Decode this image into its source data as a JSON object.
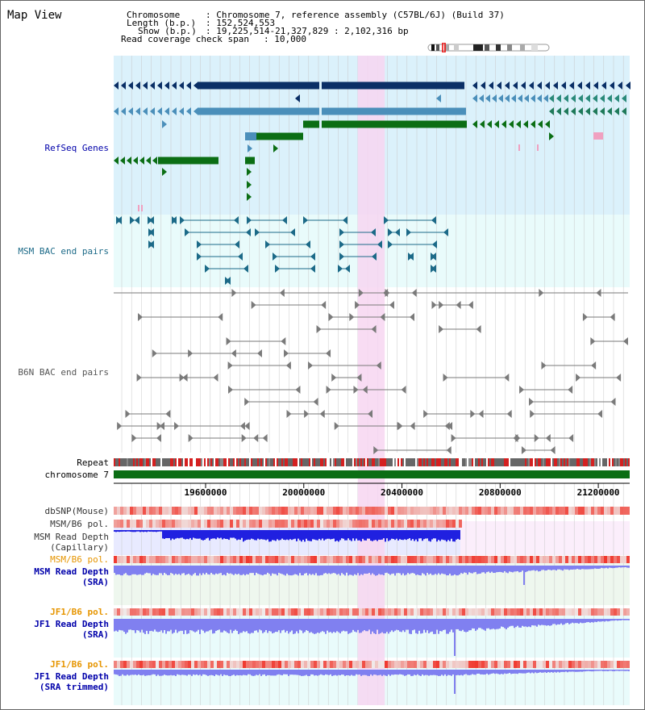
{
  "title": "Map View",
  "info": {
    "chromosome_key": "Chromosome",
    "chromosome_val": ": Chromosome 7, reference assembly (C57BL/6J) (Build 37)",
    "length_key": "Length (b.p.)",
    "length_val": ": 152,524,553",
    "show_key": "Show (b.p.)",
    "show_val": ": 19,225,514-21,327,829 : 2,102,316 bp",
    "coverage_key": "Read coverage check span",
    "coverage_val": ": 10,000"
  },
  "tracks": {
    "refseq": "RefSeq Genes",
    "msm_bac": "MSM BAC end pairs",
    "b6n_bac": "B6N BAC end pairs",
    "repeat": "Repeat",
    "chromosome": "chromosome 7",
    "dbsnp": "dbSNP(Mouse)",
    "msm_b6_pol_1": "MSM/B6 pol.",
    "msm_depth_cap_1": "MSM Read Depth",
    "msm_depth_cap_2": "(Capillary)",
    "msm_b6_pol_2": "MSM/B6 pol.",
    "msm_depth_sra_1": "MSM Read Depth",
    "msm_depth_sra_2": "(SRA)",
    "jf1_b6_pol_1": "JF1/B6 pol.",
    "jf1_depth_sra_1": "JF1 Read Depth",
    "jf1_depth_sra_2": "(SRA)",
    "jf1_b6_pol_2": "JF1/B6 pol.",
    "jf1_depth_trim_1": "JF1 Read Depth",
    "jf1_depth_trim_2": "(SRA trimmed)"
  },
  "axis": {
    "ticks": [
      "19600000",
      "20000000",
      "20400000",
      "20800000",
      "21200000"
    ],
    "tick_values": [
      19600000,
      20000000,
      20400000,
      20800000,
      21200000
    ],
    "range": [
      19225514,
      21327829
    ]
  },
  "highlight_range": [
    20220000,
    20330000
  ],
  "colors": {
    "refseq_bg": "#dbf1fb",
    "bac_bg": "#e9fbfb",
    "highlight": "#f7d6f1",
    "grid": "#c8c8c8",
    "navy": "#0a2f66",
    "steel": "#4b8fba",
    "green": "#0b6e14",
    "bac_msm": "#1c6a88",
    "bac_b6n": "#7a7a7a",
    "chrom": "#0b6e14",
    "depth_cap": "#2020e0",
    "depth_sra": "#8080f0",
    "label_blue": "#0000aa",
    "label_orange": "#e69500"
  }
}
